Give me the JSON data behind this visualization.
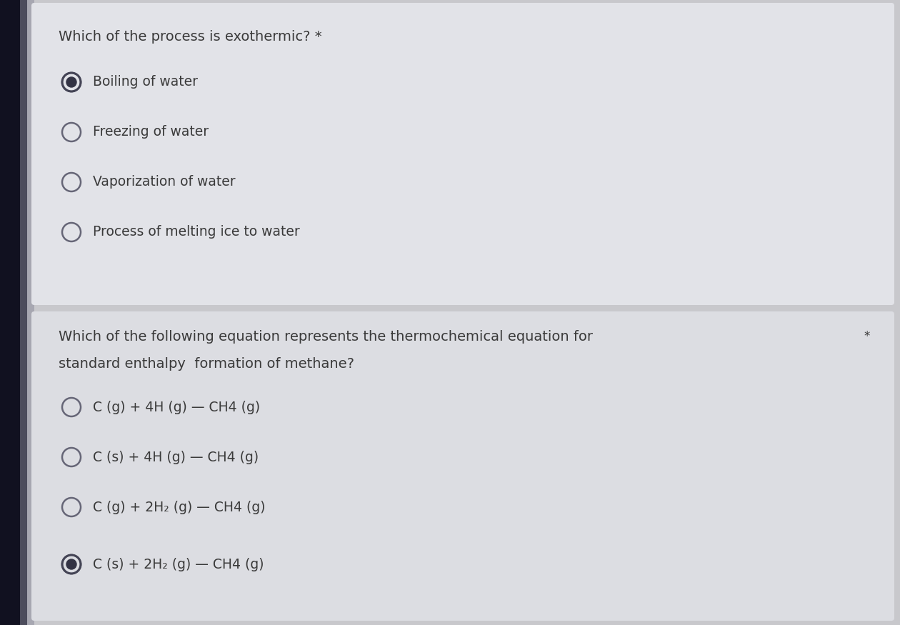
{
  "bg_color": "#c8c8cc",
  "left_bar_color": "#1a1a2e",
  "section1_bg": "#e2e3e8",
  "section2_bg": "#dcdde2",
  "separator_color": "#b8b9be",
  "q1_title": "Which of the process is exothermic? *",
  "q1_options": [
    "Boiling of water",
    "Freezing of water",
    "Vaporization of water",
    "Process of melting ice to water"
  ],
  "q1_selected": 0,
  "q2_title_line1": "Which of the following equation represents the thermochemical equation for",
  "q2_title_line2": "standard enthalpy  formation of methane?",
  "q2_star": "*",
  "q2_options": [
    "C (g) + 4H (g) — CH4 (g)",
    "C (s) + 4H (g) — CH4 (g)",
    "C (g) + 2H₂ (g) — CH4 (g)",
    "C (s) + 2H₂ (g) — CH4 (g)"
  ],
  "q2_selected": 3,
  "text_color": "#3a3a3a",
  "title_fontsize": 14,
  "option_fontsize": 13.5,
  "left_bar_width": 0.038
}
